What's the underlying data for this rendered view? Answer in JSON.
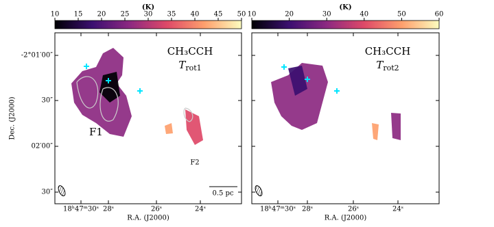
{
  "chart_data": [
    {
      "type": "map",
      "colorbar_label": "(K)",
      "clim": [
        10,
        50
      ],
      "cticks": [
        10,
        15,
        20,
        25,
        30,
        35,
        40,
        45,
        50
      ],
      "colormap": [
        "#000004",
        "#3b0f70",
        "#8c2981",
        "#de4968",
        "#fe9f6d",
        "#fcfdbf"
      ],
      "title": "CH₃CCH",
      "label_symbol": "T",
      "label_subscript": "rot1",
      "xlabel": "R.A. (J2000)",
      "ylabel": "Dec. (J2000)",
      "xtick_labels": [
        "18ʰ47ᵐ30ˢ",
        "28ˢ",
        "26ˢ",
        "24ˢ"
      ],
      "ytick_labels": [
        "-2°01′00″",
        "30″",
        "02′00″",
        "30″"
      ],
      "annotations": [
        "F1",
        "F2"
      ],
      "scale_bar": "0.5 pc"
    },
    {
      "type": "map",
      "colorbar_label": "(K)",
      "clim": [
        10,
        60
      ],
      "cticks": [
        10,
        20,
        30,
        40,
        50,
        60
      ],
      "colormap": [
        "#000004",
        "#3b0f70",
        "#8c2981",
        "#de4968",
        "#fe9f6d",
        "#fcfdbf"
      ],
      "title": "CH₃CCH",
      "label_symbol": "T",
      "label_subscript": "rot2",
      "xlabel": "R.A. (J2000)",
      "xtick_labels": [
        "18ʰ47ᵐ30ˢ",
        "28ˢ",
        "26ˢ",
        "24ˢ"
      ]
    }
  ]
}
